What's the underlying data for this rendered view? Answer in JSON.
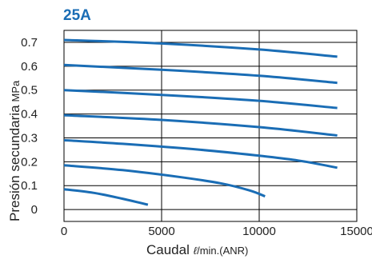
{
  "chart_data": {
    "type": "line",
    "title": "25A",
    "xlabel": "Caudal",
    "xlabel_unit_symbol": "ℓ",
    "xlabel_unit": "/min.(ANR)",
    "ylabel": "Presión secundaria",
    "ylabel_unit": "MPa",
    "xlim": [
      0,
      15000
    ],
    "ylim": [
      -0.05,
      0.75
    ],
    "x_ticks": [
      0,
      5000,
      10000,
      15000
    ],
    "x_tick_labels": [
      "0",
      "5000",
      "10000",
      "15000"
    ],
    "y_ticks": [
      0,
      0.1,
      0.2,
      0.3,
      0.4,
      0.5,
      0.6,
      0.7
    ],
    "y_tick_labels": [
      "0",
      "0.1",
      "0.2",
      "0.3",
      "0.4",
      "0.5",
      "0.6",
      "0.7"
    ],
    "grid": true,
    "colors": {
      "curve": "#1a6db5",
      "title": "#1a6db5",
      "grid": "#000000"
    },
    "series": [
      {
        "points": [
          [
            0,
            0.71
          ],
          [
            5000,
            0.695
          ],
          [
            10000,
            0.67
          ],
          [
            14000,
            0.64
          ]
        ]
      },
      {
        "points": [
          [
            0,
            0.605
          ],
          [
            5000,
            0.585
          ],
          [
            10000,
            0.56
          ],
          [
            14000,
            0.53
          ]
        ]
      },
      {
        "points": [
          [
            0,
            0.5
          ],
          [
            5000,
            0.48
          ],
          [
            10000,
            0.455
          ],
          [
            14000,
            0.425
          ]
        ]
      },
      {
        "points": [
          [
            0,
            0.395
          ],
          [
            5000,
            0.375
          ],
          [
            10000,
            0.345
          ],
          [
            14000,
            0.31
          ]
        ]
      },
      {
        "points": [
          [
            0,
            0.29
          ],
          [
            3000,
            0.275
          ],
          [
            7000,
            0.25
          ],
          [
            10000,
            0.225
          ],
          [
            12000,
            0.205
          ],
          [
            14000,
            0.175
          ]
        ]
      },
      {
        "points": [
          [
            0,
            0.185
          ],
          [
            3000,
            0.165
          ],
          [
            6000,
            0.135
          ],
          [
            8000,
            0.11
          ],
          [
            9500,
            0.08
          ],
          [
            10300,
            0.055
          ]
        ]
      },
      {
        "points": [
          [
            0,
            0.085
          ],
          [
            1500,
            0.07
          ],
          [
            3000,
            0.045
          ],
          [
            4300,
            0.02
          ]
        ]
      }
    ]
  }
}
